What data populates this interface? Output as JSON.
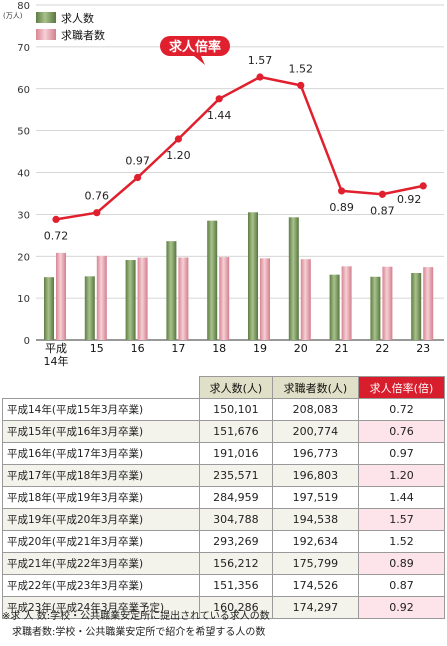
{
  "chart_data": {
    "type": "bar",
    "categories": [
      "平成\n14年",
      "15",
      "16",
      "17",
      "18",
      "19",
      "20",
      "21",
      "22",
      "23"
    ],
    "ylabel": "(万人)",
    "ylim": [
      0,
      80
    ],
    "yticks": [
      0,
      10,
      20,
      30,
      40,
      50,
      60,
      70,
      80
    ],
    "series": [
      {
        "name": "求人数",
        "type": "bar",
        "color": "#7d9b5f",
        "values": [
          15.0,
          15.2,
          19.1,
          23.6,
          28.5,
          30.5,
          29.3,
          15.6,
          15.1,
          16.0
        ]
      },
      {
        "name": "求職者数",
        "type": "bar",
        "color": "#e8a6b0",
        "values": [
          20.8,
          20.1,
          19.7,
          19.7,
          19.8,
          19.5,
          19.3,
          17.6,
          17.5,
          17.4
        ]
      },
      {
        "name": "求人倍率",
        "type": "line",
        "color": "#e0202e",
        "values": [
          0.72,
          0.76,
          0.97,
          1.2,
          1.44,
          1.57,
          1.52,
          0.89,
          0.87,
          0.92
        ],
        "labels": [
          "0.72",
          "0.76",
          "0.97",
          "1.20",
          "1.44",
          "1.57",
          "1.52",
          "0.89",
          "0.87",
          "0.92"
        ]
      }
    ],
    "grid": true,
    "legend": "top-left"
  },
  "callout": "求人倍率",
  "table": {
    "headers": [
      "求人数(人)",
      "求職者数(人)",
      "求人倍率(倍)"
    ],
    "rows": [
      {
        "label": "平成14年(平成15年3月卒業)",
        "jobs": "150,101",
        "seekers": "208,083",
        "ratio": "0.72"
      },
      {
        "label": "平成15年(平成16年3月卒業)",
        "jobs": "151,676",
        "seekers": "200,774",
        "ratio": "0.76"
      },
      {
        "label": "平成16年(平成17年3月卒業)",
        "jobs": "191,016",
        "seekers": "196,773",
        "ratio": "0.97"
      },
      {
        "label": "平成17年(平成18年3月卒業)",
        "jobs": "235,571",
        "seekers": "196,803",
        "ratio": "1.20"
      },
      {
        "label": "平成18年(平成19年3月卒業)",
        "jobs": "284,959",
        "seekers": "197,519",
        "ratio": "1.44"
      },
      {
        "label": "平成19年(平成20年3月卒業)",
        "jobs": "304,788",
        "seekers": "194,538",
        "ratio": "1.57"
      },
      {
        "label": "平成20年(平成21年3月卒業)",
        "jobs": "293,269",
        "seekers": "192,634",
        "ratio": "1.52"
      },
      {
        "label": "平成21年(平成22年3月卒業)",
        "jobs": "156,212",
        "seekers": "175,799",
        "ratio": "0.89"
      },
      {
        "label": "平成22年(平成23年3月卒業)",
        "jobs": "151,356",
        "seekers": "174,526",
        "ratio": "0.87"
      },
      {
        "label": "平成23年(平成24年3月卒業予定)",
        "jobs": "160,286",
        "seekers": "174,297",
        "ratio": "0.92"
      }
    ]
  },
  "notes": [
    "※求 人 数:学校・公共職業安定所に提出されている求人の数",
    "求職者数:学校・公共職業安定所で紹介を希望する人の数"
  ]
}
